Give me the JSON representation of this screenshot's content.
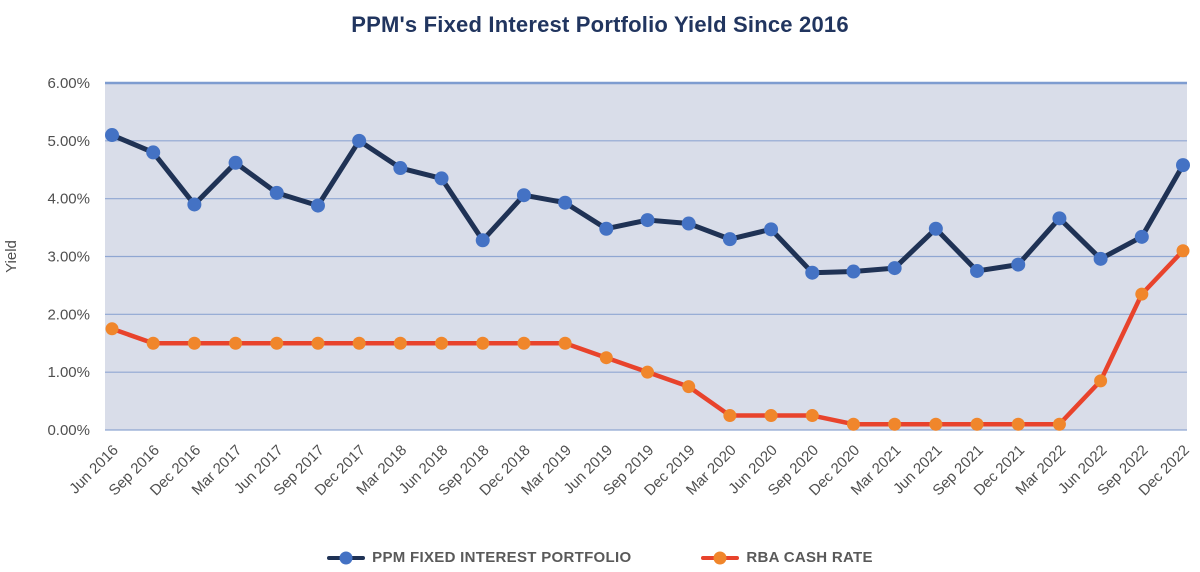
{
  "chart_data": {
    "type": "line",
    "title": "PPM's Fixed Interest Portfolio Yield Since 2016",
    "xlabel": "",
    "ylabel": "Yield",
    "ylim": [
      0,
      6
    ],
    "grid": true,
    "legend_position": "bottom",
    "ytick_labels": [
      "0.00%",
      "1.00%",
      "2.00%",
      "3.00%",
      "4.00%",
      "5.00%",
      "6.00%"
    ],
    "categories": [
      "Jun 2016",
      "Sep 2016",
      "Dec 2016",
      "Mar 2017",
      "Jun 2017",
      "Sep 2017",
      "Dec 2017",
      "Mar 2018",
      "Jun 2018",
      "Sep 2018",
      "Dec 2018",
      "Mar 2019",
      "Jun 2019",
      "Sep 2019",
      "Dec 2019",
      "Mar 2020",
      "Jun 2020",
      "Sep 2020",
      "Dec 2020",
      "Mar 2021",
      "Jun 2021",
      "Sep 2021",
      "Dec 2021",
      "Mar 2022",
      "Jun 2022",
      "Sep 2022",
      "Dec 2022"
    ],
    "series": [
      {
        "name": "PPM FIXED INTEREST PORTFOLIO",
        "line_color": "#1f3255",
        "marker_color": "#4472c4",
        "line_width": 5,
        "marker_radius": 7,
        "values": [
          5.1,
          4.8,
          3.9,
          4.62,
          4.1,
          3.88,
          5.0,
          4.53,
          4.35,
          3.28,
          4.06,
          3.93,
          3.48,
          3.63,
          3.57,
          3.3,
          3.47,
          2.72,
          2.74,
          2.8,
          3.48,
          2.75,
          2.86,
          3.66,
          2.96,
          3.34,
          4.58
        ]
      },
      {
        "name": "RBA CASH RATE",
        "line_color": "#e8432c",
        "marker_color": "#f0862b",
        "line_width": 4.5,
        "marker_radius": 6.5,
        "values": [
          1.75,
          1.5,
          1.5,
          1.5,
          1.5,
          1.5,
          1.5,
          1.5,
          1.5,
          1.5,
          1.5,
          1.5,
          1.25,
          1.0,
          0.75,
          0.25,
          0.25,
          0.25,
          0.1,
          0.1,
          0.1,
          0.1,
          0.1,
          0.1,
          0.85,
          2.35,
          3.1
        ]
      }
    ]
  },
  "colors": {
    "title": "#21355f",
    "plot_background": "#d9dde9",
    "gridline": "#8fa6d2",
    "gridline_top": "#7e9cd0",
    "axis_text": "#4f4f4f",
    "legend_text": "#595959"
  }
}
